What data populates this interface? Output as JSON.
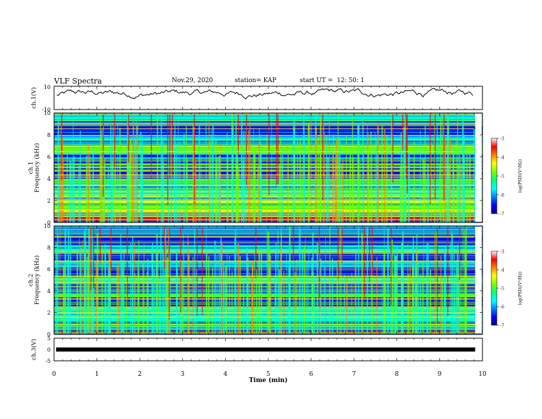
{
  "header": {
    "title": "VLF Spectra",
    "date": "Nov.29, 2020",
    "station": "station= KAP",
    "start": "start UT =  12: 50: 1"
  },
  "chart_data": [
    {
      "type": "line",
      "ylabel": "ch.1(V)",
      "ylim": [
        -10,
        10
      ],
      "yticks": [
        "10",
        "-10"
      ],
      "xlim": [
        0,
        10
      ],
      "description_points": 240
    },
    {
      "type": "heatmap",
      "ylabel": "ch.1\nFrequency (kHz)",
      "ylim": [
        0,
        10
      ],
      "yticks": [
        "0",
        "2",
        "4",
        "6",
        "8",
        "10"
      ],
      "colorbar": {
        "label": "log(PSD)(V²/Hz)",
        "range": [
          -7,
          -3
        ],
        "ticks": [
          "-3",
          "-4",
          "-5",
          "-6",
          "-7"
        ]
      }
    },
    {
      "type": "heatmap",
      "ylabel": "ch.2\nFrequency (kHz)",
      "ylim": [
        0,
        10
      ],
      "yticks": [
        "0",
        "2",
        "4",
        "6",
        "8",
        "10"
      ],
      "colorbar": {
        "label": "log(PSD)(V²/Hz)",
        "range": [
          -7,
          -3
        ],
        "ticks": [
          "-3",
          "-4",
          "-5",
          "-6",
          "-7"
        ]
      }
    },
    {
      "type": "line",
      "ylabel": "ch.3(V)",
      "ylim": [
        -5,
        5
      ],
      "yticks": [
        "5",
        "0",
        "-5"
      ],
      "value": 0
    }
  ],
  "xaxis": {
    "label": "Time (min)",
    "range": [
      0,
      10
    ],
    "ticks": [
      "0",
      "1",
      "2",
      "3",
      "4",
      "5",
      "6",
      "7",
      "8",
      "9",
      "10"
    ]
  },
  "colors": {
    "scale": [
      "#00007f",
      "#0000ff",
      "#00aaff",
      "#00ffcc",
      "#66ff00",
      "#ffff00",
      "#ff8800",
      "#ff0000",
      "#ffffff"
    ],
    "trace": "#000000"
  }
}
